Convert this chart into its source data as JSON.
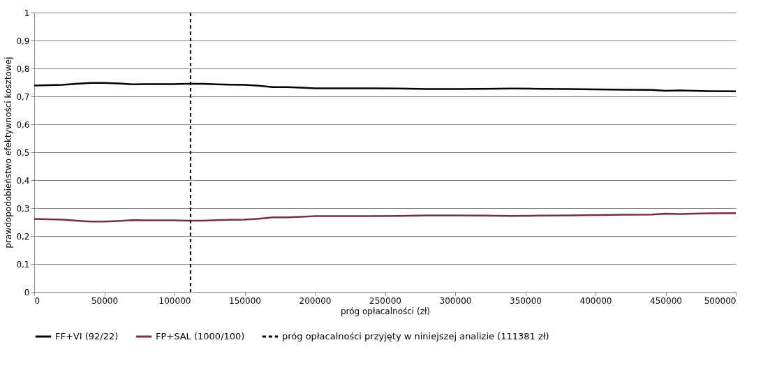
{
  "chart_data": {
    "type": "line",
    "xlabel": "próg opłacalności (zł)",
    "ylabel": "prawdopodobieństwo efektywności kosztowej",
    "x": [
      0,
      10000,
      20000,
      30000,
      40000,
      50000,
      60000,
      70000,
      80000,
      90000,
      100000,
      110000,
      120000,
      130000,
      140000,
      150000,
      160000,
      170000,
      180000,
      190000,
      200000,
      220000,
      240000,
      260000,
      280000,
      300000,
      320000,
      340000,
      360000,
      380000,
      400000,
      420000,
      440000,
      450000,
      460000,
      480000,
      500000
    ],
    "series": [
      {
        "name": "FF+VI (92/22)",
        "color": "#000000",
        "values": [
          0.739,
          0.74,
          0.741,
          0.745,
          0.748,
          0.748,
          0.746,
          0.743,
          0.744,
          0.744,
          0.744,
          0.745,
          0.745,
          0.743,
          0.742,
          0.741,
          0.738,
          0.733,
          0.733,
          0.731,
          0.729,
          0.729,
          0.729,
          0.728,
          0.726,
          0.726,
          0.727,
          0.728,
          0.727,
          0.726,
          0.725,
          0.724,
          0.723,
          0.72,
          0.721,
          0.719,
          0.718
        ]
      },
      {
        "name": "FP+SAL (1000/100)",
        "color": "#7b2c45",
        "values": [
          0.261,
          0.26,
          0.259,
          0.255,
          0.252,
          0.252,
          0.254,
          0.257,
          0.256,
          0.256,
          0.256,
          0.255,
          0.255,
          0.257,
          0.258,
          0.259,
          0.262,
          0.267,
          0.267,
          0.269,
          0.271,
          0.271,
          0.271,
          0.272,
          0.274,
          0.274,
          0.273,
          0.272,
          0.273,
          0.274,
          0.275,
          0.276,
          0.277,
          0.28,
          0.279,
          0.281,
          0.282
        ]
      }
    ],
    "xlim": [
      0,
      500000
    ],
    "xticks": [
      0,
      50000,
      100000,
      150000,
      200000,
      250000,
      300000,
      350000,
      400000,
      450000,
      500000
    ],
    "ylim": [
      0,
      1
    ],
    "yticks": [
      0,
      {
        "value": 0.1,
        "label": "0,1"
      },
      {
        "value": 0.2,
        "label": "0,2"
      },
      {
        "value": 0.3,
        "label": "0,3"
      },
      {
        "value": 0.4,
        "label": "0,4"
      },
      {
        "value": 0.5,
        "label": "0,5"
      },
      {
        "value": 0.6,
        "label": "0,6"
      },
      {
        "value": 0.7,
        "label": "0,7"
      },
      {
        "value": 0.8,
        "label": "0,8"
      },
      {
        "value": 0.9,
        "label": "0,9"
      },
      1
    ],
    "ref_lines": [
      {
        "axis": "x",
        "value": 111381,
        "label": "próg opłacalności przyjęty w niniejszej analizie (111381 zł)",
        "color": "#000000",
        "line_style": "dashed"
      }
    ],
    "grid": "y",
    "legend": "bottom",
    "marker": "none",
    "line_style": "solid"
  }
}
